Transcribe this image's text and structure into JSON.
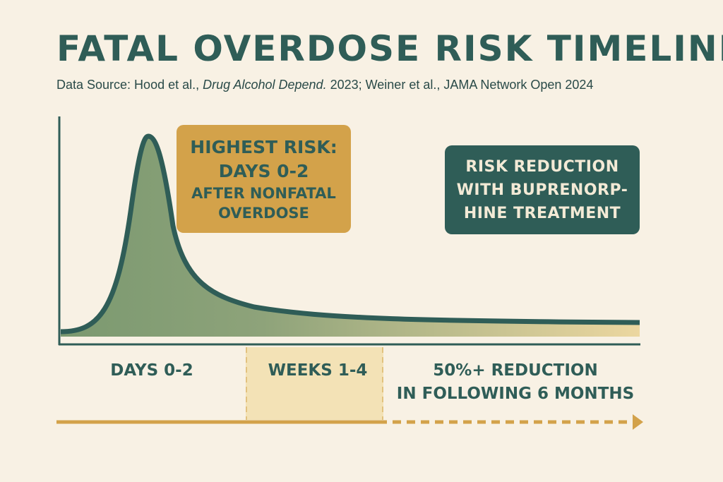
{
  "title": "FATAL OVERDOSE RISK TIMELINE",
  "source": {
    "prefix": "Data Source: Hood et al., ",
    "journal": "Drug Alcohol Depend.",
    "suffix": " 2023; Weiner et al., JAMA Network Open 2024"
  },
  "chart_data": {
    "type": "area",
    "title": "FATAL OVERDOSE RISK TIMELINE",
    "xlabel": "",
    "ylabel": "",
    "x_periods": [
      "DAYS 0-2",
      "WEEKS 1-4",
      "50%+ REDUCTION IN FOLLOWING 6 MONTHS"
    ],
    "shape": "sharp peak in days 0-2, rapid decline, long low tail",
    "annotations": {
      "highest_risk": [
        "HIGHEST RISK:",
        "DAYS 0-2",
        "AFTER NONFATAL",
        "OVERDOSE"
      ],
      "treatment": [
        "RISK REDUCTION",
        "WITH BUPRENORP-",
        "HINE TREATMENT"
      ]
    },
    "period_labels": {
      "days": "DAYS 0-2",
      "weeks": "WEEKS 1-4",
      "reduction_1": "50%+ REDUCTION",
      "reduction_2": "IN FOLLOWING 6 MONTHS"
    },
    "grid": false,
    "legend": "none",
    "colors": {
      "line": "#2f5d57",
      "fill_start": "#7b9970",
      "fill_end": "#ecd7a0",
      "accent": "#d3a24a",
      "band": "#f3e2b6"
    }
  }
}
